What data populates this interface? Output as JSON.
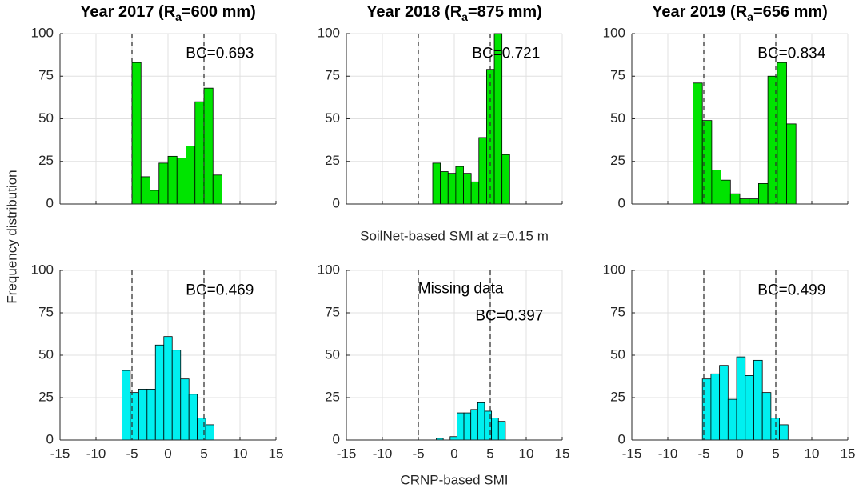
{
  "ylabel": "Frequency distribution",
  "chart_data": [
    {
      "type": "histogram",
      "title": [
        "Year 2017 (R",
        "a",
        "=600 mm)"
      ],
      "bins": [
        -5,
        -3.75,
        -2.5,
        -1.25,
        0,
        1.25,
        2.5,
        3.75,
        5,
        6.25,
        7.5
      ],
      "values": [
        83,
        16,
        8,
        24,
        28,
        27,
        34,
        60,
        68,
        17
      ],
      "color": "#00e400",
      "xlim": [
        -15,
        15
      ],
      "ylim": [
        0,
        100
      ],
      "xticks": [
        -15,
        -10,
        -5,
        0,
        5,
        10,
        15
      ],
      "yticks": [
        0,
        25,
        50,
        75,
        100
      ],
      "xtick_labels": false,
      "grid": true,
      "vlines": [
        -5,
        5
      ],
      "annotations": [
        "BC=0.693"
      ]
    },
    {
      "type": "histogram",
      "title": [
        "Year 2018 (R",
        "a",
        "=875 mm)"
      ],
      "bins": [
        -3,
        -1.93,
        -0.86,
        0.21,
        1.28,
        2.35,
        3.42,
        4.49,
        5.56,
        6.63,
        7.7
      ],
      "values": [
        24,
        19,
        18,
        22,
        18,
        13,
        39,
        79,
        100,
        29
      ],
      "color": "#00e400",
      "xlim": [
        -15,
        15
      ],
      "ylim": [
        0,
        100
      ],
      "xticks": [
        -15,
        -10,
        -5,
        0,
        5,
        10,
        15
      ],
      "yticks": [
        0,
        25,
        50,
        75,
        100
      ],
      "xtick_labels": false,
      "grid": true,
      "vlines": [
        -5,
        5
      ],
      "annotations": [
        "BC=0.721"
      ],
      "xlabel": "SoilNet-based SMI at z=0.15 m"
    },
    {
      "type": "histogram",
      "title": [
        "Year 2019 (R",
        "a",
        "=656 mm)"
      ],
      "bins": [
        -6.5,
        -5.2,
        -3.9,
        -2.6,
        -1.3,
        0,
        1.3,
        2.6,
        3.9,
        5.2,
        6.5,
        7.8
      ],
      "values": [
        71,
        49,
        20,
        14,
        6,
        3,
        3,
        12,
        75,
        83,
        47
      ],
      "color": "#00e400",
      "xlim": [
        -15,
        15
      ],
      "ylim": [
        0,
        100
      ],
      "xticks": [
        -15,
        -10,
        -5,
        0,
        5,
        10,
        15
      ],
      "yticks": [
        0,
        25,
        50,
        75,
        100
      ],
      "xtick_labels": false,
      "grid": true,
      "vlines": [
        -5,
        5
      ],
      "annotations": [
        "BC=0.834"
      ]
    },
    {
      "type": "histogram",
      "bins": [
        -6.4,
        -5.24,
        -4.07,
        -2.91,
        -1.75,
        -0.58,
        0.58,
        1.75,
        2.91,
        4.07,
        5.24,
        6.4
      ],
      "values": [
        41,
        28,
        30,
        30,
        56,
        61,
        53,
        36,
        27,
        13,
        9
      ],
      "color": "#00f0f0",
      "xlim": [
        -15,
        15
      ],
      "ylim": [
        0,
        100
      ],
      "xticks": [
        -15,
        -10,
        -5,
        0,
        5,
        10,
        15
      ],
      "yticks": [
        0,
        25,
        50,
        75,
        100
      ],
      "xtick_labels": true,
      "grid": true,
      "vlines": [
        -5,
        5
      ],
      "annotations": [
        "BC=0.469"
      ]
    },
    {
      "type": "histogram",
      "bins": [
        -2.5,
        -1.54,
        -0.58,
        0.38,
        1.34,
        2.3,
        3.26,
        4.22,
        5.18,
        6.14,
        7.1
      ],
      "values": [
        1,
        0,
        2,
        16,
        16,
        18,
        22,
        17,
        13,
        11
      ],
      "color": "#00f0f0",
      "xlim": [
        -15,
        15
      ],
      "ylim": [
        0,
        100
      ],
      "xticks": [
        -15,
        -10,
        -5,
        0,
        5,
        10,
        15
      ],
      "yticks": [
        0,
        25,
        50,
        75,
        100
      ],
      "xtick_labels": true,
      "grid": true,
      "vlines": [
        -5,
        5
      ],
      "annotations": [
        "Missing data",
        "BC=0.397"
      ],
      "xlabel": "CRNP-based SMI"
    },
    {
      "type": "histogram",
      "bins": [
        -5.2,
        -4.01,
        -2.82,
        -1.63,
        -0.44,
        0.75,
        1.94,
        3.13,
        4.32,
        5.51,
        6.7
      ],
      "values": [
        36,
        39,
        44,
        24,
        49,
        38,
        47,
        28,
        13,
        9
      ],
      "color": "#00f0f0",
      "xlim": [
        -15,
        15
      ],
      "ylim": [
        0,
        100
      ],
      "xticks": [
        -15,
        -10,
        -5,
        0,
        5,
        10,
        15
      ],
      "yticks": [
        0,
        25,
        50,
        75,
        100
      ],
      "xtick_labels": true,
      "grid": true,
      "vlines": [
        -5,
        5
      ],
      "annotations": [
        "BC=0.499"
      ]
    }
  ]
}
